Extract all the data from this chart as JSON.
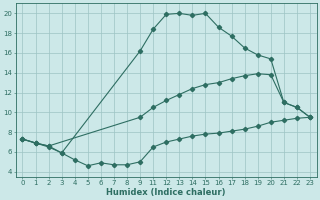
{
  "title": "",
  "xlabel": "Humidex (Indice chaleur)",
  "bg_color": "#cce8e8",
  "grid_color": "#9dc4c4",
  "line_color": "#2e6e62",
  "xlim": [
    -0.5,
    23.5
  ],
  "ylim": [
    3.5,
    21.0
  ],
  "xticks": [
    0,
    1,
    2,
    3,
    4,
    5,
    6,
    7,
    8,
    9,
    11,
    12,
    13,
    14,
    15,
    16,
    17,
    18,
    19,
    20,
    21,
    22,
    23
  ],
  "yticks": [
    4,
    6,
    8,
    10,
    12,
    14,
    16,
    18,
    20
  ],
  "line1_x": [
    0,
    1,
    2,
    3,
    9,
    11,
    12,
    13,
    14,
    15,
    16,
    17,
    18,
    19,
    20,
    21,
    22,
    23
  ],
  "line1_y": [
    7.3,
    6.9,
    6.5,
    5.9,
    16.2,
    18.4,
    19.9,
    20.0,
    19.8,
    20.0,
    18.6,
    17.7,
    16.5,
    15.8,
    15.4,
    11.0,
    10.5,
    9.5
  ],
  "line2_x": [
    0,
    1,
    2,
    9,
    11,
    12,
    13,
    14,
    15,
    16,
    17,
    18,
    19,
    20,
    21,
    22,
    23
  ],
  "line2_y": [
    7.3,
    6.9,
    6.6,
    9.5,
    10.5,
    11.2,
    11.8,
    12.4,
    12.8,
    13.0,
    13.4,
    13.7,
    13.9,
    13.8,
    11.0,
    10.5,
    9.5
  ],
  "line3_x": [
    0,
    1,
    2,
    3,
    4,
    5,
    6,
    7,
    8,
    9,
    11,
    12,
    13,
    14,
    15,
    16,
    17,
    18,
    19,
    20,
    21,
    22,
    23
  ],
  "line3_y": [
    7.3,
    6.9,
    6.6,
    5.9,
    5.2,
    4.6,
    4.9,
    4.7,
    4.7,
    5.0,
    6.5,
    7.0,
    7.3,
    7.6,
    7.8,
    7.9,
    8.1,
    8.3,
    8.6,
    9.0,
    9.2,
    9.4,
    9.5
  ],
  "tick_fontsize": 5.0,
  "xlabel_fontsize": 6.0
}
